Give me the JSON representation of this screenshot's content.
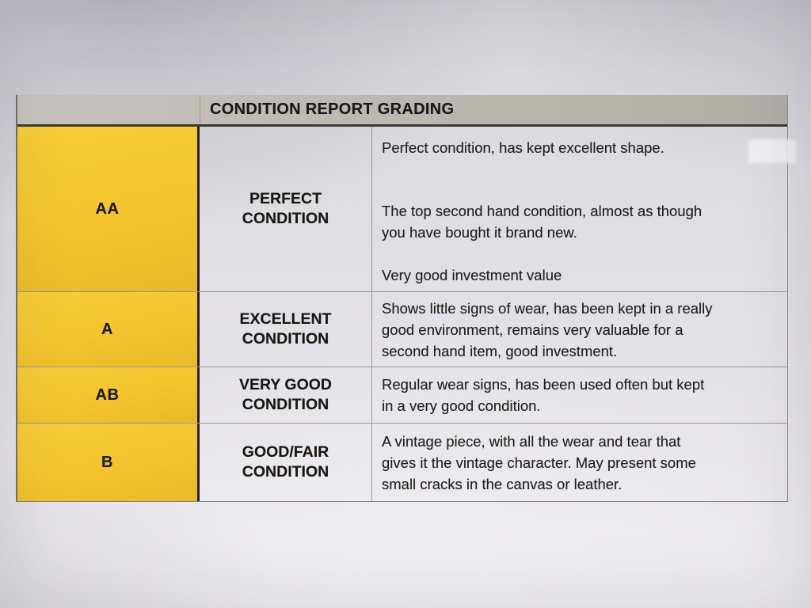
{
  "header": {
    "title": "CONDITION REPORT GRADING"
  },
  "colors": {
    "grade_cell_yellow": "#f4c52e",
    "header_bar_gray": "#bdb9b1",
    "paper_gray": "#dedde2",
    "text_black": "#1b1a16",
    "grade_divider_black": "#242320"
  },
  "table": {
    "rows": [
      {
        "grade": "AA",
        "condition_lines": [
          "PERFECT",
          "CONDITION"
        ],
        "paragraphs": [
          [
            "Perfect condition, has kept excellent shape."
          ],
          [
            "The top second hand condition, almost as though",
            "you have bought it brand new."
          ],
          [
            "Very good investment value"
          ]
        ]
      },
      {
        "grade": "A",
        "condition_lines": [
          "EXCELLENT",
          "CONDITION"
        ],
        "paragraphs": [
          [
            "Shows little signs of wear, has been kept in a really",
            "good environment, remains very valuable for a",
            "second hand item, good investment."
          ]
        ]
      },
      {
        "grade": "AB",
        "condition_lines": [
          "VERY GOOD",
          "CONDITION"
        ],
        "paragraphs": [
          [
            "Regular wear signs, has been used often but kept",
            "in a very good condition."
          ]
        ]
      },
      {
        "grade": "B",
        "condition_lines": [
          "GOOD/FAIR",
          "CONDITION"
        ],
        "paragraphs": [
          [
            "A vintage piece, with all the wear and tear that",
            "gives it the vintage character. May present some",
            "small cracks in the canvas or leather."
          ]
        ]
      }
    ]
  }
}
